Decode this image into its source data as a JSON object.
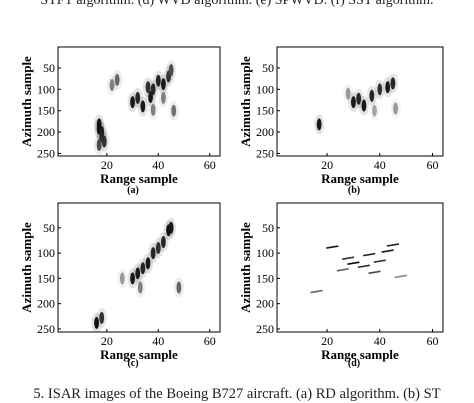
{
  "caption_top": "STFT algorithm. (d) WVD algorithm. (e) SPWVD. (f) SST algorithm.",
  "caption_bottom": "5.   ISAR images of the Boeing B727 aircraft. (a) RD algorithm. (b) ST",
  "chart_data": [
    {
      "type": "heatmap",
      "panel": "(a)",
      "xlabel": "Range sample",
      "ylabel": "Azimuth sample",
      "xticks": [
        20,
        40,
        60
      ],
      "yticks": [
        50,
        100,
        150,
        200,
        250
      ],
      "xlim": [
        1,
        64
      ],
      "ylim": [
        256,
        1
      ],
      "yticks_shown": [
        50,
        100,
        150,
        200,
        250
      ],
      "scatterers": [
        [
          17,
          182,
          0.9
        ],
        [
          17,
          192,
          0.95
        ],
        [
          18,
          200,
          0.9
        ],
        [
          18,
          210,
          0.85
        ],
        [
          19,
          222,
          0.8
        ],
        [
          17,
          230,
          0.7
        ],
        [
          24,
          78,
          0.6
        ],
        [
          22,
          90,
          0.5
        ],
        [
          30,
          130,
          0.9
        ],
        [
          32,
          120,
          0.85
        ],
        [
          34,
          140,
          0.9
        ],
        [
          37,
          118,
          0.9
        ],
        [
          38,
          100,
          0.85
        ],
        [
          36,
          95,
          0.8
        ],
        [
          40,
          80,
          0.85
        ],
        [
          42,
          88,
          0.9
        ],
        [
          44,
          70,
          0.8
        ],
        [
          45,
          55,
          0.7
        ],
        [
          42,
          120,
          0.5
        ],
        [
          38,
          148,
          0.5
        ],
        [
          46,
          150,
          0.55
        ]
      ]
    },
    {
      "type": "heatmap",
      "panel": "(b)",
      "xlabel": "Range sample",
      "ylabel": "Azimuth sample",
      "xticks": [
        20,
        40,
        60
      ],
      "yticks": [
        50,
        100,
        150,
        200,
        250
      ],
      "xlim": [
        1,
        64
      ],
      "ylim": [
        256,
        1
      ],
      "scatterers": [
        [
          17,
          182,
          0.9
        ],
        [
          30,
          130,
          0.9
        ],
        [
          32,
          122,
          0.85
        ],
        [
          34,
          138,
          0.9
        ],
        [
          37,
          115,
          0.85
        ],
        [
          40,
          100,
          0.8
        ],
        [
          43,
          95,
          0.9
        ],
        [
          45,
          86,
          0.85
        ],
        [
          28,
          110,
          0.4
        ],
        [
          46,
          145,
          0.4
        ],
        [
          38,
          150,
          0.35
        ]
      ]
    },
    {
      "type": "heatmap",
      "panel": "(c)",
      "xlabel": "Range sample",
      "ylabel": "Azimuth sample",
      "xticks": [
        20,
        40,
        60
      ],
      "yticks": [
        50,
        100,
        150,
        200,
        250
      ],
      "xlim": [
        1,
        64
      ],
      "ylim": [
        256,
        1
      ],
      "scatterers": [
        [
          16,
          238,
          0.95
        ],
        [
          18,
          228,
          0.8
        ],
        [
          30,
          150,
          0.9
        ],
        [
          32,
          140,
          0.9
        ],
        [
          34,
          130,
          0.85
        ],
        [
          36,
          120,
          0.9
        ],
        [
          38,
          100,
          0.85
        ],
        [
          40,
          90,
          0.8
        ],
        [
          42,
          78,
          0.85
        ],
        [
          44,
          55,
          0.95
        ],
        [
          45,
          50,
          0.9
        ],
        [
          33,
          168,
          0.5
        ],
        [
          48,
          168,
          0.6
        ],
        [
          26,
          150,
          0.4
        ]
      ]
    },
    {
      "type": "heatmap",
      "panel": "(d)",
      "xlabel": "Range sample",
      "ylabel": "Azimuth sample",
      "xticks": [
        20,
        40,
        60
      ],
      "yticks": [
        50,
        100,
        150,
        200,
        250
      ],
      "xlim": [
        1,
        64
      ],
      "ylim": [
        256,
        1
      ],
      "scatterers": [
        [
          22,
          90,
          0.9
        ],
        [
          28,
          112,
          0.8
        ],
        [
          30,
          122,
          0.95
        ],
        [
          34,
          128,
          0.85
        ],
        [
          36,
          105,
          0.9
        ],
        [
          40,
          118,
          0.8
        ],
        [
          43,
          98,
          0.9
        ],
        [
          45,
          86,
          0.9
        ],
        [
          38,
          140,
          0.7
        ],
        [
          26,
          135,
          0.6
        ],
        [
          16,
          178,
          0.6
        ],
        [
          48,
          148,
          0.5
        ]
      ]
    }
  ]
}
